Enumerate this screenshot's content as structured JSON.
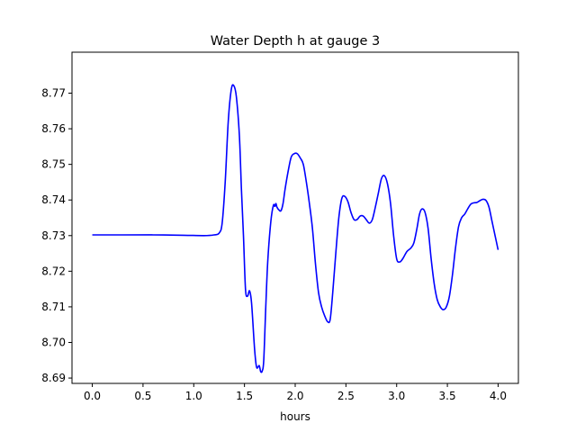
{
  "chart_data": {
    "type": "line",
    "title": "Water Depth h at gauge 3",
    "xlabel": "hours",
    "ylabel": "",
    "xlim": [
      -0.2,
      4.2
    ],
    "ylim": [
      8.6885,
      8.7815
    ],
    "xticks": [
      0.0,
      0.5,
      1.0,
      1.5,
      2.0,
      2.5,
      3.0,
      3.5,
      4.0
    ],
    "xtick_labels": [
      "0.0",
      "0.5",
      "1.0",
      "1.5",
      "2.0",
      "2.5",
      "3.0",
      "3.5",
      "4.0"
    ],
    "yticks": [
      8.69,
      8.7,
      8.71,
      8.72,
      8.73,
      8.74,
      8.75,
      8.76,
      8.77
    ],
    "ytick_labels": [
      "8.69",
      "8.70",
      "8.71",
      "8.72",
      "8.73",
      "8.74",
      "8.75",
      "8.76",
      "8.77"
    ],
    "grid": false,
    "legend": "none",
    "series": [
      {
        "color": "#0000ff",
        "x": [
          0.0,
          0.3,
          0.6,
          0.9,
          1.1,
          1.2,
          1.25,
          1.28,
          1.31,
          1.34,
          1.37,
          1.395,
          1.42,
          1.45,
          1.47,
          1.49,
          1.51,
          1.53,
          1.55,
          1.57,
          1.6,
          1.62,
          1.645,
          1.66,
          1.675,
          1.69,
          1.71,
          1.73,
          1.76,
          1.785,
          1.8,
          1.81,
          1.82,
          1.84,
          1.86,
          1.88,
          1.9,
          1.93,
          1.96,
          1.99,
          2.02,
          2.05,
          2.08,
          2.11,
          2.14,
          2.17,
          2.2,
          2.23,
          2.26,
          2.29,
          2.32,
          2.345,
          2.37,
          2.4,
          2.43,
          2.46,
          2.49,
          2.52,
          2.55,
          2.58,
          2.61,
          2.64,
          2.67,
          2.7,
          2.73,
          2.76,
          2.79,
          2.82,
          2.85,
          2.88,
          2.91,
          2.94,
          2.97,
          3.0,
          3.03,
          3.06,
          3.1,
          3.14,
          3.17,
          3.2,
          3.225,
          3.25,
          3.28,
          3.31,
          3.34,
          3.37,
          3.4,
          3.43,
          3.46,
          3.49,
          3.52,
          3.55,
          3.58,
          3.61,
          3.64,
          3.67,
          3.7,
          3.73,
          3.76,
          3.79,
          3.82,
          3.85,
          3.88,
          3.91,
          3.94,
          3.97,
          4.0
        ],
        "y": [
          8.7302,
          8.7302,
          8.7302,
          8.7301,
          8.73,
          8.7302,
          8.7307,
          8.7335,
          8.745,
          8.762,
          8.771,
          8.7721,
          8.769,
          8.758,
          8.743,
          8.73,
          8.715,
          8.713,
          8.7145,
          8.711,
          8.698,
          8.693,
          8.6935,
          8.6918,
          8.692,
          8.695,
          8.71,
          8.723,
          8.734,
          8.7385,
          8.7382,
          8.739,
          8.738,
          8.7372,
          8.737,
          8.739,
          8.743,
          8.748,
          8.752,
          8.753,
          8.753,
          8.7518,
          8.75,
          8.745,
          8.739,
          8.732,
          8.722,
          8.714,
          8.71,
          8.7075,
          8.7058,
          8.7065,
          8.714,
          8.725,
          8.735,
          8.7405,
          8.741,
          8.7395,
          8.7365,
          8.7345,
          8.7345,
          8.7355,
          8.7355,
          8.7345,
          8.7335,
          8.7345,
          8.738,
          8.742,
          8.746,
          8.7468,
          8.7445,
          8.739,
          8.73,
          8.7235,
          8.7226,
          8.7235,
          8.7255,
          8.7265,
          8.728,
          8.732,
          8.736,
          8.7375,
          8.7365,
          8.732,
          8.7235,
          8.7165,
          8.712,
          8.71,
          8.7092,
          8.71,
          8.713,
          8.719,
          8.7265,
          8.7325,
          8.735,
          8.736,
          8.7375,
          8.7388,
          8.7392,
          8.7393,
          8.7398,
          8.7402,
          8.7399,
          8.738,
          8.734,
          8.73,
          8.726
        ]
      }
    ]
  }
}
